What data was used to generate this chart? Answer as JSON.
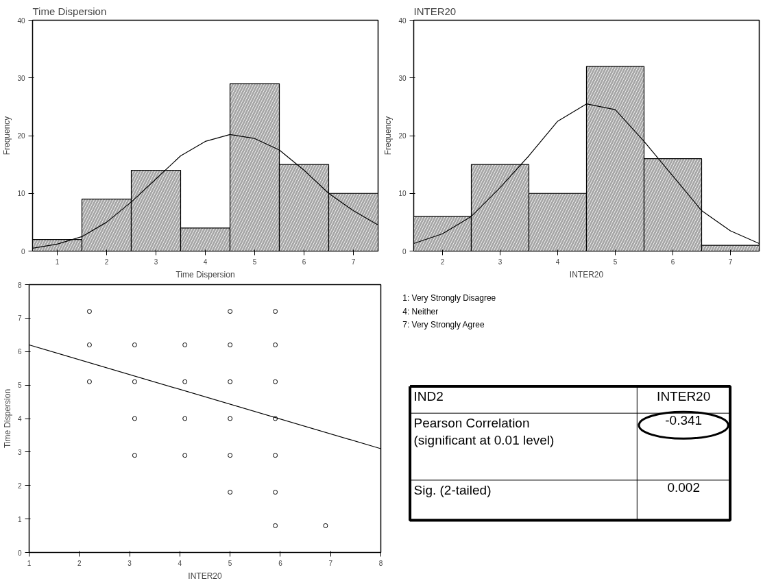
{
  "chart_data": [
    {
      "type": "histogram",
      "title": "Time Dispersion",
      "xlabel": "Time Dispersion",
      "ylabel": "Frequency",
      "bins": [
        0.5,
        1.5,
        2.5,
        3.5,
        4.5,
        5.5,
        6.5,
        7.5
      ],
      "values": [
        2,
        9,
        14,
        4,
        29,
        15,
        10
      ],
      "color": "#a6a6a6",
      "xlim": [
        0.5,
        7.5
      ],
      "xticks": [
        1,
        2,
        3,
        4,
        5,
        6,
        7
      ],
      "ylim": [
        0,
        40
      ],
      "yticks": [
        0,
        10,
        20,
        30,
        40
      ],
      "grid": false,
      "series": [
        {
          "type": "line",
          "color": "#000000",
          "x": [
            0.5,
            1,
            1.5,
            2,
            2.5,
            3,
            3.5,
            4,
            4.5,
            5,
            5.5,
            6,
            6.5,
            7,
            7.5
          ],
          "values": [
            0.5,
            1.2,
            2.5,
            5,
            8.5,
            12.5,
            16.5,
            19,
            20.2,
            19.5,
            17.5,
            14,
            10,
            7,
            4.5
          ]
        }
      ]
    },
    {
      "type": "histogram",
      "title": "INTER20",
      "xlabel": "INTER20",
      "ylabel": "Frequency",
      "bins": [
        1.5,
        2.5,
        3.5,
        4.5,
        5.5,
        6.5,
        7.5
      ],
      "values": [
        6,
        15,
        10,
        32,
        16,
        1
      ],
      "color": "#a6a6a6",
      "xlim": [
        1.5,
        7.5
      ],
      "xticks": [
        2,
        3,
        4,
        5,
        6,
        7
      ],
      "ylim": [
        0,
        40
      ],
      "yticks": [
        0,
        10,
        20,
        30,
        40
      ],
      "grid": false,
      "series": [
        {
          "type": "line",
          "color": "#000000",
          "x": [
            1.5,
            2,
            2.5,
            3,
            3.5,
            4,
            4.5,
            5,
            5.5,
            6,
            6.5,
            7,
            7.5
          ],
          "values": [
            1.3,
            3,
            6,
            11,
            16.5,
            22.5,
            25.5,
            24.5,
            19,
            13,
            7,
            3.5,
            1.3
          ]
        }
      ]
    },
    {
      "type": "scatter",
      "xlabel": "INTER20",
      "ylabel": "Time Dispersion",
      "xlim": [
        1,
        8
      ],
      "xticks": [
        1,
        2,
        3,
        4,
        5,
        6,
        7,
        8
      ],
      "ylim": [
        0,
        8
      ],
      "yticks": [
        0,
        1,
        2,
        3,
        4,
        5,
        6,
        7,
        8
      ],
      "grid": false,
      "series": [
        {
          "type": "scatter",
          "marker": "circle",
          "color": "#000000",
          "x": [
            2.2,
            5.0,
            5.9,
            2.2,
            3.1,
            4.1,
            5.0,
            5.9,
            2.2,
            3.1,
            4.1,
            5.0,
            5.9,
            3.1,
            4.1,
            5.0,
            5.9,
            3.1,
            4.1,
            5.0,
            5.9,
            5.0,
            5.9,
            5.9,
            6.9
          ],
          "values": [
            7.2,
            7.2,
            7.2,
            6.2,
            6.2,
            6.2,
            6.2,
            6.2,
            5.1,
            5.1,
            5.1,
            5.1,
            5.1,
            4.0,
            4.0,
            4.0,
            4.0,
            2.9,
            2.9,
            2.9,
            2.9,
            1.8,
            1.8,
            0.8,
            0.8
          ]
        },
        {
          "type": "line",
          "color": "#000000",
          "x": [
            1,
            8
          ],
          "values": [
            6.2,
            3.1
          ]
        }
      ]
    },
    {
      "type": "other",
      "annotations": [
        "1:  Very Strongly Disagree",
        "4: Neither",
        "7: Very Strongly Agree",
        "IND2",
        "INTER20",
        "Pearson Correlation\n(significant at 0.01 level)",
        "-0.341",
        "Sig. (2-tailed)",
        "0.002"
      ]
    }
  ]
}
